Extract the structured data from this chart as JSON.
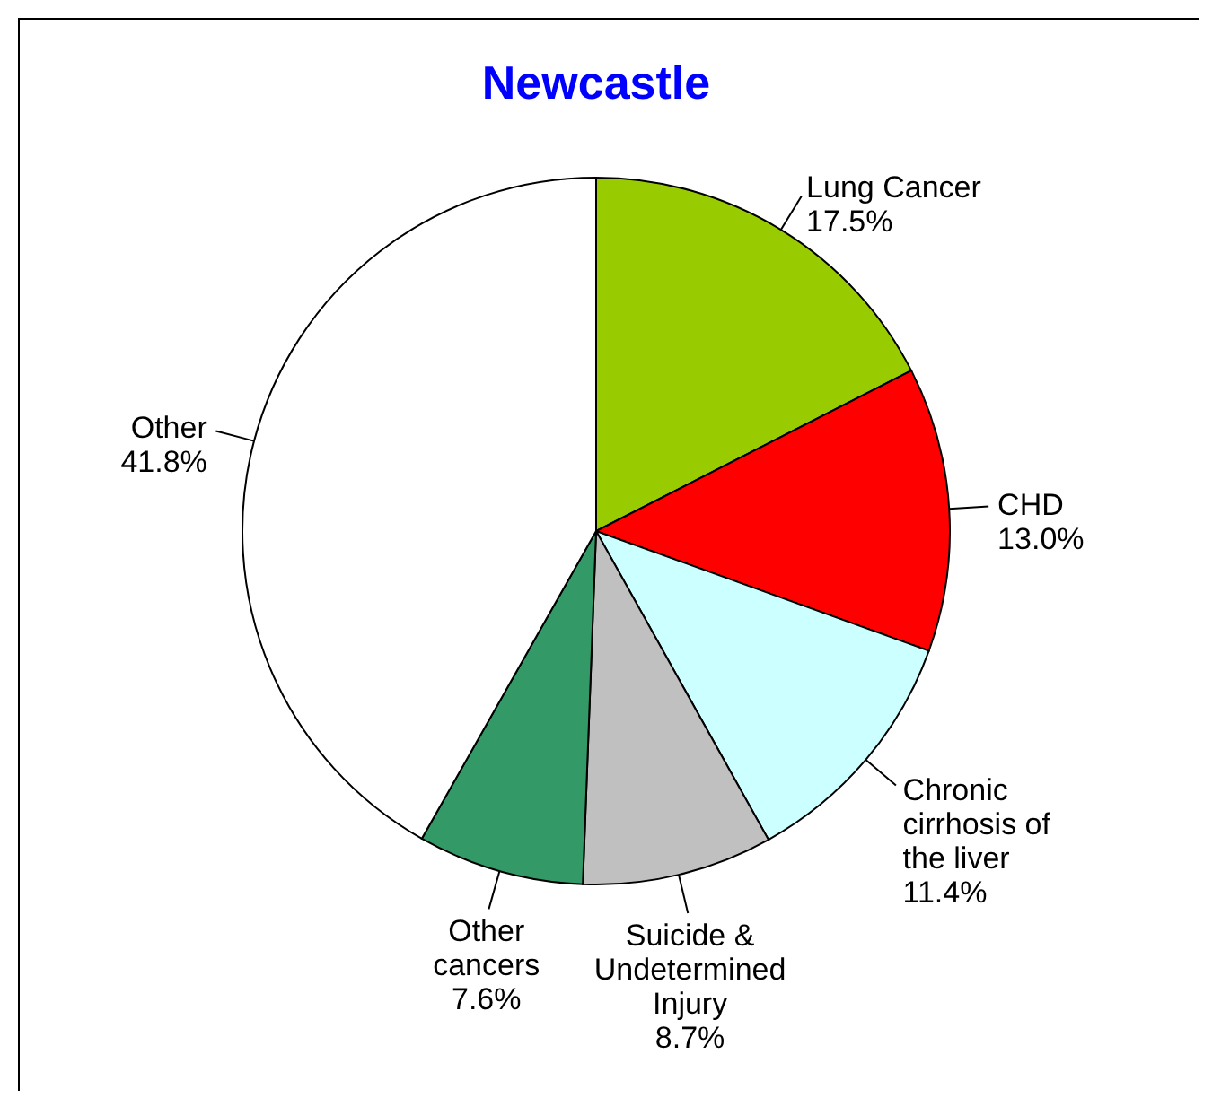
{
  "chart_data": {
    "type": "pie",
    "title": "Newcastle",
    "categories": [
      "Lung Cancer",
      "CHD",
      "Chronic cirrhosis of the liver",
      "Suicide & Undetermined Injury",
      "Other cancers",
      "Other"
    ],
    "values": [
      17.5,
      13.0,
      11.4,
      8.7,
      7.6,
      41.8
    ],
    "value_labels": [
      "17.5%",
      "13.0%",
      "11.4%",
      "8.7%",
      "7.6%",
      "41.8%"
    ],
    "colors": [
      "#99cc00",
      "#ff0000",
      "#ccffff",
      "#c0c0c0",
      "#339966",
      "#ffffff"
    ]
  }
}
